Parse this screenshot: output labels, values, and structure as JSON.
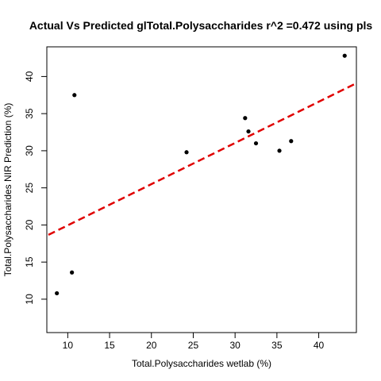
{
  "chart_data": {
    "type": "scatter",
    "title": "Actual Vs Predicted glTotal.Polysaccharides r^2 =0.472 using pls",
    "xlabel": "Total.Polysaccharides wetlab (%)",
    "ylabel": "Total.Polysaccharides NIR Prediction (%)",
    "xlim": [
      7.5,
      44.5
    ],
    "ylim": [
      5.5,
      44
    ],
    "xticks": [
      10,
      15,
      20,
      25,
      30,
      35,
      40
    ],
    "yticks": [
      10,
      15,
      20,
      25,
      30,
      35,
      40
    ],
    "x": [
      8.7,
      10.5,
      10.8,
      24.2,
      31.2,
      31.6,
      32.5,
      35.3,
      36.7,
      43.1
    ],
    "y": [
      10.8,
      13.6,
      37.5,
      29.8,
      34.4,
      32.6,
      31.0,
      30.0,
      31.3,
      42.8
    ],
    "fit_line": {
      "intercept": 14.4,
      "slope": 0.555,
      "color": "#e00000",
      "style": "dashed"
    },
    "point_color": "#000000",
    "grid": false,
    "legend": false
  }
}
